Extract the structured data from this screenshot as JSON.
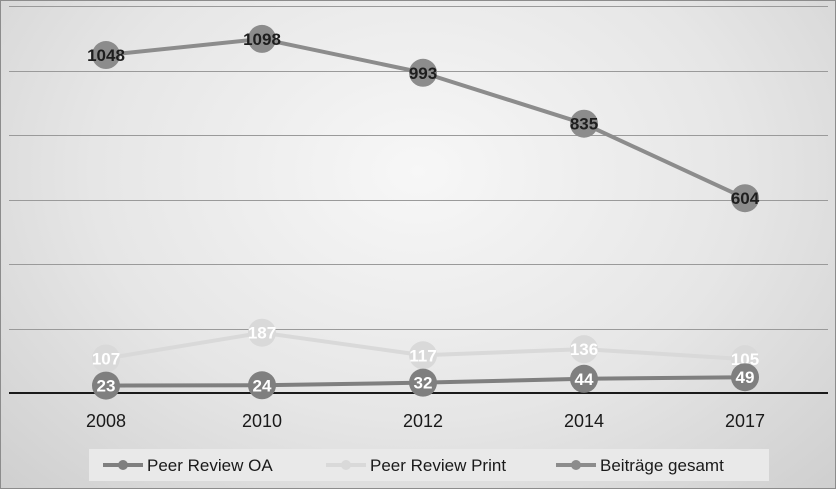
{
  "chart_data": {
    "type": "line",
    "title": "",
    "xlabel": "",
    "ylabel": "",
    "categories": [
      "2008",
      "2010",
      "2012",
      "2014",
      "2017"
    ],
    "ylim": [
      0,
      1200
    ],
    "grid": true,
    "legend_position": "bottom",
    "series": [
      {
        "name": "Beiträge gesamt",
        "values": [
          1048,
          1098,
          993,
          835,
          604
        ],
        "color": "#8c8c8c",
        "label_color": "#1e1e1e"
      },
      {
        "name": "Peer Review Print",
        "values": [
          107,
          187,
          117,
          136,
          105
        ],
        "color": "#d9d9d9",
        "label_color": "#ffffff"
      },
      {
        "name": "Peer Review OA",
        "values": [
          23,
          24,
          32,
          44,
          49
        ],
        "color": "#7f7f7f",
        "label_color": "#ffffff"
      }
    ],
    "legend_order": [
      "Peer Review OA",
      "Peer Review Print",
      "Beiträge gesamt"
    ]
  }
}
